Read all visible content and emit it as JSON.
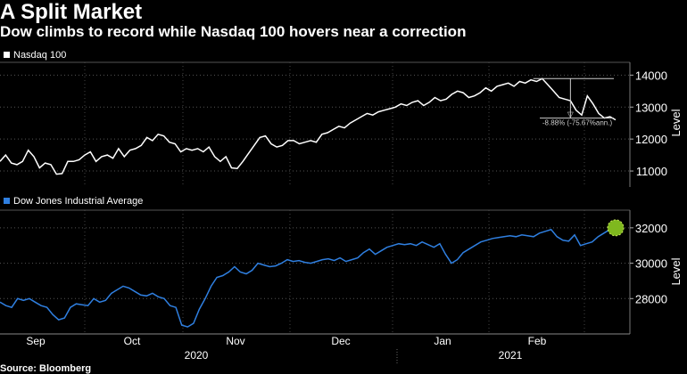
{
  "title": "A Split Market",
  "subtitle": "Dow climbs to record while Nasdaq 100 hovers near a correction",
  "source": "Source: Bloomberg",
  "chart_data": [
    {
      "type": "line",
      "legend": "Nasdaq 100",
      "color": "#ffffff",
      "ylabel": "Level",
      "ylim": [
        10500,
        14400
      ],
      "yticks": [
        11000,
        12000,
        13000,
        14000
      ],
      "grid": true,
      "annotation": {
        "text": "-8.88% (-75.67%ann.)",
        "peak": 13890,
        "trough": 12656
      },
      "series": [
        {
          "values": [
            11300,
            11500,
            11250,
            11200,
            11300,
            11650,
            11450,
            11100,
            11250,
            11200,
            10900,
            10920,
            11300,
            11300,
            11350,
            11500,
            11600,
            11300,
            11450,
            11500,
            11400,
            11700,
            11450,
            11650,
            11700,
            11800,
            12050,
            11950,
            12150,
            12100,
            11900,
            11850,
            11600,
            11700,
            11650,
            11700,
            11600,
            11750,
            11450,
            11300,
            11450,
            11100,
            11080,
            11300,
            11550,
            11800,
            12050,
            12100,
            11850,
            11750,
            11800,
            11950,
            11950,
            11850,
            11900,
            11950,
            11900,
            12150,
            12200,
            12300,
            12400,
            12350,
            12500,
            12600,
            12700,
            12800,
            12750,
            12850,
            12900,
            12950,
            13000,
            13100,
            13050,
            13150,
            13200,
            13050,
            13150,
            13300,
            13200,
            13250,
            13400,
            13500,
            13450,
            13300,
            13350,
            13450,
            13600,
            13500,
            13650,
            13700,
            13750,
            13650,
            13800,
            13750,
            13850,
            13800,
            13890,
            13700,
            13500,
            13300,
            13250,
            13200,
            12900,
            12750,
            13350,
            13100,
            12800,
            12656,
            12700,
            12600
          ]
        }
      ]
    },
    {
      "type": "line",
      "legend": "Dow Jones Industrial Average",
      "color": "#2f7fe0",
      "ylabel": "Level",
      "ylim": [
        26000,
        33000
      ],
      "yticks": [
        28000,
        30000,
        32000
      ],
      "grid": true,
      "xticks": [
        "Sep",
        "Oct",
        "Nov",
        "Dec",
        "Jan",
        "Feb"
      ],
      "years": [
        "2020",
        "2021"
      ],
      "series": [
        {
          "values": [
            27800,
            27600,
            27500,
            28000,
            27900,
            28000,
            27800,
            27600,
            27500,
            27100,
            26800,
            26900,
            27500,
            27700,
            27650,
            27600,
            28000,
            27800,
            27900,
            28300,
            28500,
            28700,
            28600,
            28400,
            28200,
            28150,
            28300,
            28100,
            28000,
            27600,
            27500,
            26500,
            26400,
            26600,
            27400,
            28000,
            28700,
            29200,
            29300,
            29500,
            29800,
            29500,
            29400,
            29600,
            30000,
            29900,
            29800,
            29850,
            30000,
            30200,
            30100,
            30150,
            30050,
            30000,
            30100,
            30200,
            30250,
            30150,
            30300,
            30100,
            30200,
            30300,
            30600,
            30800,
            30500,
            30700,
            30900,
            31000,
            31100,
            31050,
            31100,
            31000,
            31200,
            31050,
            30900,
            31100,
            30500,
            30000,
            30200,
            30600,
            30800,
            31000,
            31200,
            31300,
            31400,
            31450,
            31500,
            31550,
            31500,
            31600,
            31550,
            31500,
            31700,
            31800,
            31900,
            31500,
            31300,
            31250,
            31600,
            31000,
            31100,
            31200,
            31500,
            31700,
            31900,
            32000
          ]
        }
      ],
      "marker_value": 32000
    }
  ]
}
